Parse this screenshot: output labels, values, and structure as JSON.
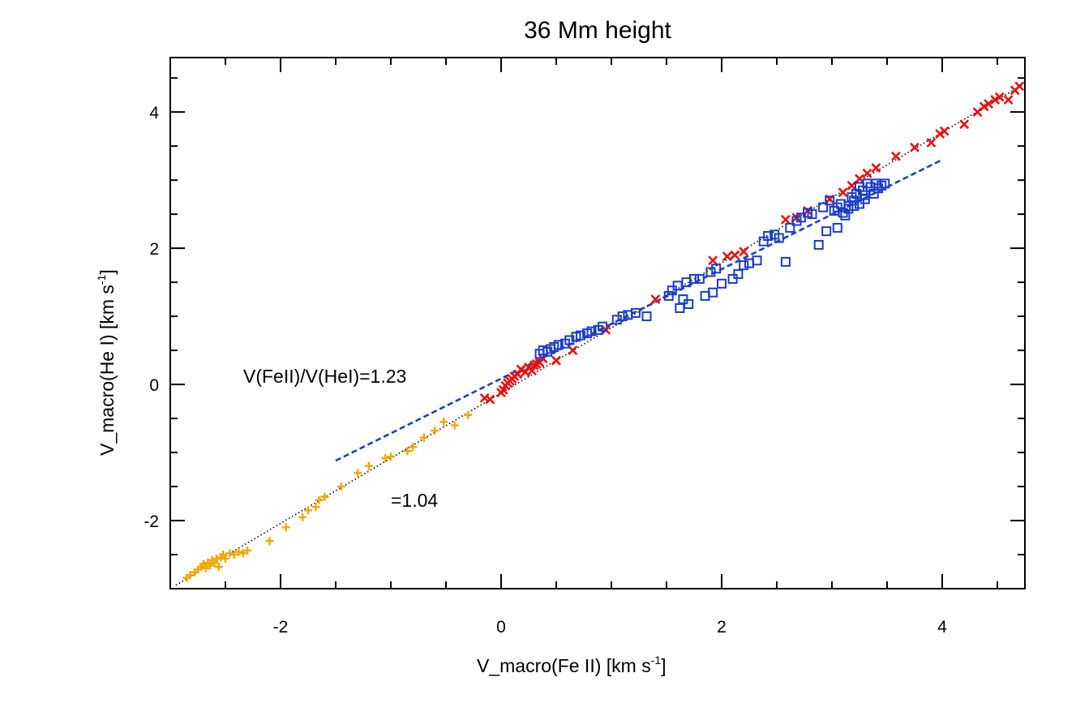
{
  "chart_data": {
    "type": "scatter",
    "title": "36 Mm height",
    "xlabel": "V_macro(Fe II) [km s",
    "xlabel_sup": "-1",
    "xlabel_end": "]",
    "ylabel": "V_macro(He I) [km s",
    "ylabel_sup": "-1",
    "ylabel_end": "]",
    "xlim": [
      -3.0,
      4.75
    ],
    "ylim": [
      -3.0,
      4.8
    ],
    "xticks": [
      -2,
      0,
      2,
      4
    ],
    "yticks": [
      -2,
      0,
      2,
      4
    ],
    "grid": false,
    "annotations": [
      {
        "text": "V(FeII)/V(HeI)=1.23",
        "x": -0.6,
        "y": 0.05
      },
      {
        "text": "=1.04",
        "x": -0.6,
        "y": -1.65
      }
    ],
    "lines": [
      {
        "name": "fit-1.04",
        "style": "dotted",
        "color": "#000000",
        "x": [
          -2.95,
          4.75
        ],
        "y": [
          -2.95,
          4.42
        ]
      },
      {
        "name": "fit-1.23",
        "style": "dashed",
        "color": "#1a3ccc",
        "x": [
          -1.5,
          4.0
        ],
        "y": [
          -1.12,
          3.3
        ]
      }
    ],
    "series": [
      {
        "name": "orange-plus",
        "marker": "plus",
        "color": "#f0a800",
        "x": [
          -2.85,
          -2.82,
          -2.78,
          -2.75,
          -2.72,
          -2.7,
          -2.68,
          -2.66,
          -2.64,
          -2.62,
          -2.6,
          -2.58,
          -2.56,
          -2.54,
          -2.52,
          -2.5,
          -2.46,
          -2.42,
          -2.38,
          -2.34,
          -2.3,
          -2.1,
          -1.95,
          -1.8,
          -1.75,
          -1.68,
          -1.65,
          -1.6,
          -1.45,
          -1.3,
          -1.2,
          -1.05,
          -1.0,
          -0.85,
          -0.8,
          -0.7,
          -0.6,
          -0.52,
          -0.42,
          -0.3
        ],
        "y": [
          -2.84,
          -2.8,
          -2.76,
          -2.72,
          -2.68,
          -2.64,
          -2.7,
          -2.62,
          -2.66,
          -2.58,
          -2.62,
          -2.56,
          -2.68,
          -2.54,
          -2.5,
          -2.56,
          -2.48,
          -2.5,
          -2.46,
          -2.48,
          -2.44,
          -2.3,
          -2.1,
          -1.95,
          -1.85,
          -1.8,
          -1.7,
          -1.65,
          -1.5,
          -1.3,
          -1.2,
          -1.08,
          -1.06,
          -0.98,
          -0.92,
          -0.78,
          -0.68,
          -0.55,
          -0.6,
          -0.45
        ]
      },
      {
        "name": "red-cross",
        "marker": "cross",
        "color": "#e81010",
        "x": [
          -0.15,
          -0.1,
          0.0,
          0.02,
          0.04,
          0.06,
          0.08,
          0.1,
          0.12,
          0.15,
          0.18,
          0.22,
          0.25,
          0.28,
          0.3,
          0.32,
          0.35,
          0.38,
          0.5,
          0.65,
          0.95,
          1.4,
          1.92,
          2.05,
          2.12,
          2.2,
          2.58,
          2.68,
          2.78,
          2.98,
          3.1,
          3.18,
          3.25,
          3.32,
          3.4,
          3.58,
          3.75,
          3.9,
          3.98,
          4.02,
          4.2,
          4.32,
          4.38,
          4.42,
          4.48,
          4.52,
          4.6,
          4.66,
          4.7
        ],
        "y": [
          -0.2,
          -0.22,
          -0.12,
          -0.08,
          -0.02,
          0.02,
          0.05,
          0.08,
          0.12,
          0.15,
          0.22,
          0.18,
          0.25,
          0.2,
          0.28,
          0.3,
          0.32,
          0.38,
          0.35,
          0.5,
          0.8,
          1.25,
          1.82,
          1.88,
          1.9,
          1.95,
          2.42,
          2.45,
          2.55,
          2.72,
          2.82,
          2.92,
          3.02,
          3.1,
          3.18,
          3.35,
          3.48,
          3.55,
          3.68,
          3.72,
          3.82,
          4.0,
          4.08,
          4.12,
          4.18,
          4.22,
          4.18,
          4.32,
          4.38
        ]
      },
      {
        "name": "blue-square",
        "marker": "square",
        "color": "#1a3ccc",
        "x": [
          0.35,
          0.38,
          0.42,
          0.45,
          0.48,
          0.52,
          0.58,
          0.62,
          0.68,
          0.72,
          0.78,
          0.82,
          0.88,
          0.92,
          1.05,
          1.1,
          1.15,
          1.22,
          1.32,
          1.52,
          1.55,
          1.6,
          1.62,
          1.65,
          1.68,
          1.7,
          1.75,
          1.8,
          1.85,
          1.9,
          1.92,
          1.95,
          2.0,
          2.1,
          2.15,
          2.2,
          2.25,
          2.32,
          2.38,
          2.42,
          2.48,
          2.52,
          2.58,
          2.62,
          2.68,
          2.72,
          2.78,
          2.82,
          2.88,
          2.92,
          2.95,
          2.98,
          3.02,
          3.05,
          3.08,
          3.1,
          3.12,
          3.15,
          3.18,
          3.2,
          3.22,
          3.25,
          3.28,
          3.3,
          3.32,
          3.35,
          3.38,
          3.4,
          3.42,
          3.45,
          3.48,
          3.2,
          3.25,
          3.3,
          3.15,
          3.05
        ],
        "y": [
          0.45,
          0.5,
          0.48,
          0.52,
          0.55,
          0.58,
          0.6,
          0.65,
          0.7,
          0.72,
          0.75,
          0.78,
          0.8,
          0.85,
          0.95,
          1.0,
          1.02,
          1.05,
          1.0,
          1.3,
          1.38,
          1.45,
          1.12,
          1.25,
          1.5,
          1.18,
          1.55,
          1.55,
          1.3,
          1.65,
          1.35,
          1.7,
          1.48,
          1.55,
          1.62,
          1.75,
          1.78,
          1.82,
          2.1,
          2.18,
          2.2,
          2.15,
          1.8,
          2.3,
          2.4,
          2.45,
          2.52,
          2.5,
          2.05,
          2.6,
          2.25,
          2.7,
          2.55,
          2.6,
          2.65,
          2.52,
          2.48,
          2.58,
          2.75,
          2.62,
          2.8,
          2.9,
          2.85,
          2.72,
          2.95,
          2.9,
          2.8,
          2.95,
          2.88,
          2.92,
          2.95,
          2.7,
          2.65,
          2.78,
          2.62,
          2.3
        ]
      }
    ]
  }
}
